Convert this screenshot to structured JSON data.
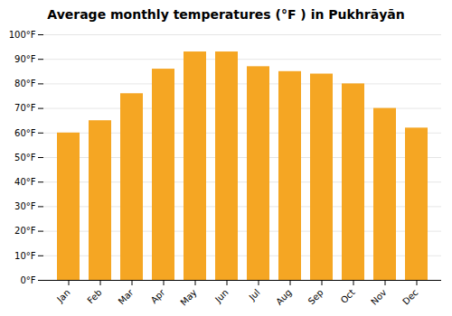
{
  "chart_data": {
    "type": "bar",
    "title": "Average monthly temperatures (°F ) in Pukhrāyān",
    "categories": [
      "Jan",
      "Feb",
      "Mar",
      "Apr",
      "May",
      "Jun",
      "Jul",
      "Aug",
      "Sep",
      "Oct",
      "Nov",
      "Dec"
    ],
    "values": [
      60,
      65,
      76,
      86,
      93,
      93,
      87,
      85,
      84,
      80,
      70,
      62
    ],
    "color": "#F5A623",
    "ylim": [
      0,
      100
    ],
    "yticks": [
      {
        "value": 0,
        "label": "0°F"
      },
      {
        "value": 10,
        "label": "10°F"
      },
      {
        "value": 20,
        "label": "20°F"
      },
      {
        "value": 30,
        "label": "30°F"
      },
      {
        "value": 40,
        "label": "40°F"
      },
      {
        "value": 50,
        "label": "50°F"
      },
      {
        "value": 60,
        "label": "60°F"
      },
      {
        "value": 70,
        "label": "70°F"
      },
      {
        "value": 80,
        "label": "80°F"
      },
      {
        "value": 90,
        "label": "90°F"
      },
      {
        "value": 100,
        "label": "100°F"
      }
    ],
    "grid": true
  }
}
